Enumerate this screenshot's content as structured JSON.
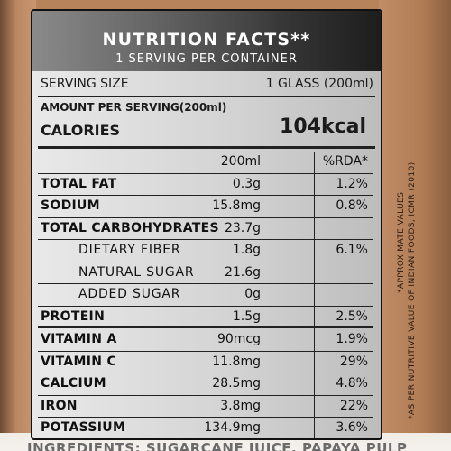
{
  "header": {
    "title": "NUTRITION FACTS**",
    "subtitle": "1 SERVING PER CONTAINER"
  },
  "serving": {
    "label": "SERVING SIZE",
    "value": "1 GLASS (200ml)"
  },
  "amount_per_serving": "AMOUNT PER SERVING(200ml)",
  "calories": {
    "label": "CALORIES",
    "value": "104kcal"
  },
  "table": {
    "headers": {
      "amount": "200ml",
      "rda": "%RDA*"
    },
    "rows": [
      {
        "name": "TOTAL FAT",
        "amount": "0.3g",
        "rda": "1.2%"
      },
      {
        "name": "SODIUM",
        "amount": "15.8mg",
        "rda": "0.8%"
      },
      {
        "name": "TOTAL CARBOHYDRATES",
        "amount": "23.7g",
        "rda": ""
      },
      {
        "name": "DIETARY FIBER",
        "amount": "1.8g",
        "rda": "6.1%"
      },
      {
        "name": "NATURAL SUGAR",
        "amount": "21.6g",
        "rda": ""
      },
      {
        "name": "ADDED SUGAR",
        "amount": "0g",
        "rda": ""
      },
      {
        "name": "PROTEIN",
        "amount": "1.5g",
        "rda": "2.5%"
      },
      {
        "name": "VITAMIN A",
        "amount": "90mcg",
        "rda": "1.9%"
      },
      {
        "name": "VITAMIN C",
        "amount": "11.8mg",
        "rda": "29%"
      },
      {
        "name": "CALCIUM",
        "amount": "28.5mg",
        "rda": "4.8%"
      },
      {
        "name": "IRON",
        "amount": "3.8mg",
        "rda": "22%"
      },
      {
        "name": "POTASSIUM",
        "amount": "134.9mg",
        "rda": "3.6%"
      }
    ]
  },
  "side_notes": {
    "line1": "*APPROXIMATE VALUES",
    "line2": "*AS PER NUTRITIVE VALUE OF INDIAN FOODS, ICMR (2010)"
  },
  "footer": {
    "ingredients": "INGREDIENTS: SUGARCANE JUICE, PAPAYA PULP"
  }
}
